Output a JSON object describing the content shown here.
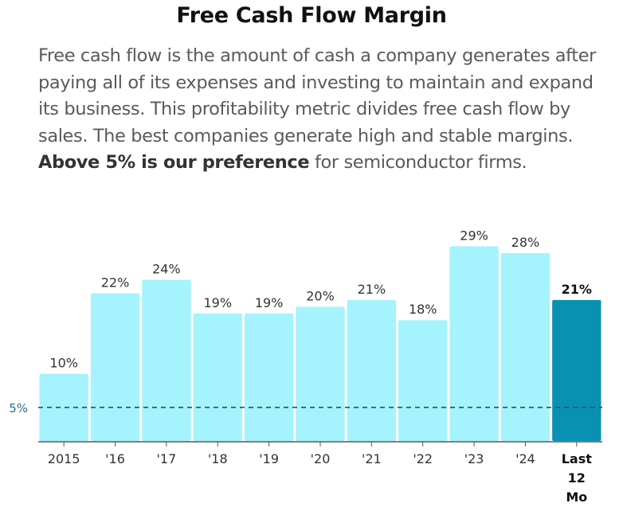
{
  "title": "Free Cash Flow Margin",
  "description": {
    "before": "Free cash flow is the amount of cash a company generates after paying all of its expenses and investing to maintain and expand its business. This profitability metric divides free cash flow by sales. The best companies generate high and stable margins. ",
    "bold": "Above 5% is our preference",
    "after": " for semiconductor firms."
  },
  "chart_data": {
    "type": "bar",
    "categories": [
      "2015",
      "'16",
      "'17",
      "'18",
      "'19",
      "'20",
      "'21",
      "'22",
      "'23",
      "'24",
      "Last 12 Mo"
    ],
    "values": [
      10,
      22,
      24,
      19,
      19,
      20,
      21,
      18,
      29,
      28,
      21
    ],
    "data_labels": [
      "10%",
      "22%",
      "24%",
      "19%",
      "19%",
      "20%",
      "21%",
      "18%",
      "29%",
      "28%",
      "21%"
    ],
    "highlight_index": 10,
    "reference_line": {
      "value": 5,
      "label": "5%"
    },
    "ylim": [
      0,
      31
    ],
    "colors": {
      "bar": "#a5f3fc",
      "highlight": "#0891b2",
      "reference": "#2f4f5f",
      "axis": "#555555"
    },
    "grid": false
  }
}
